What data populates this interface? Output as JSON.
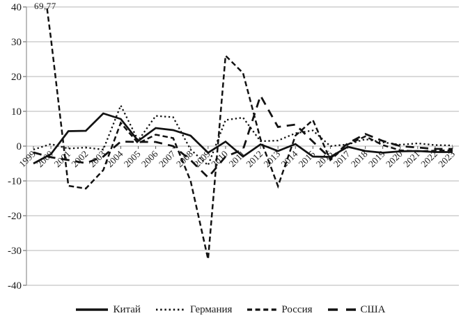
{
  "chart_data": {
    "type": "line",
    "title": "",
    "xlabel": "",
    "ylabel": "",
    "ylim": [
      -40,
      40
    ],
    "ytick_step": 10,
    "ytick_labels": [
      "40",
      "30",
      "20",
      "10",
      "0",
      "-10",
      "-20",
      "-30",
      "-40"
    ],
    "grid": "horizontal",
    "legend_position": "bottom",
    "annotation": {
      "text": "69,77",
      "series": "Россия",
      "x": "1999",
      "note": "first value clipped above plot top"
    },
    "categories": [
      "1999",
      "2000",
      "2001",
      "2002",
      "2003",
      "2004",
      "2005",
      "2006",
      "2007",
      "2008",
      "2009",
      "2010",
      "2011",
      "2012",
      "2013",
      "2014",
      "2015",
      "2016",
      "2017",
      "2018",
      "2019",
      "2020",
      "2021",
      "2022",
      "2023"
    ],
    "series": [
      {
        "name": "Китай",
        "style": "solid",
        "values": [
          -5.0,
          -2.3,
          4.3,
          4.4,
          9.4,
          7.8,
          1.5,
          5.2,
          4.6,
          3.0,
          -1.9,
          1.3,
          -3.0,
          0.5,
          -1.4,
          0.6,
          -3.0,
          -3.1,
          -0.2,
          -1.4,
          -1.9,
          -1.5,
          -1.4,
          -1.7,
          -1.7
        ]
      },
      {
        "name": "Германия",
        "style": "dotted",
        "values": [
          -1.0,
          0.6,
          -0.7,
          -0.4,
          -1.0,
          11.7,
          1.6,
          8.7,
          8.3,
          -1.0,
          -5.5,
          7.5,
          8.2,
          1.4,
          1.6,
          3.7,
          4.5,
          0.0,
          0.5,
          2.0,
          1.1,
          0.4,
          0.8,
          0.3,
          0.2
        ]
      },
      {
        "name": "Россия",
        "style": "dashed",
        "values": [
          69.77,
          31.0,
          -11.4,
          -12.2,
          -6.9,
          6.7,
          0.8,
          3.3,
          2.3,
          -10.0,
          -32.5,
          26.0,
          21.0,
          2.0,
          -11.5,
          3.0,
          7.5,
          -4.0,
          0.5,
          2.8,
          0.3,
          -1.2,
          -1.5,
          -1.3,
          -1.2
        ]
      },
      {
        "name": "США",
        "style": "longdash",
        "values": [
          -1.8,
          -3.2,
          -4.0,
          -4.9,
          -3.0,
          1.3,
          1.2,
          1.2,
          0.0,
          -4.0,
          -9.0,
          -3.0,
          -1.0,
          14.5,
          5.5,
          6.2,
          1.3,
          -3.5,
          0.8,
          3.5,
          1.5,
          0.0,
          -0.4,
          -0.8,
          -0.8
        ]
      }
    ],
    "line_color": "#121212",
    "grid_color": "#b5b5b5",
    "axis_color": "#9a9a9a"
  }
}
